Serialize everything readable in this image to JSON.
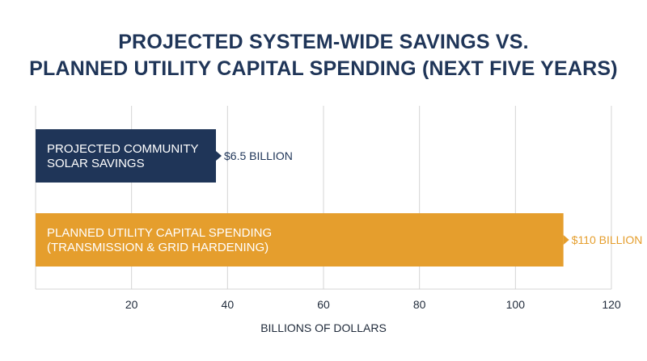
{
  "chart_data": {
    "type": "bar",
    "orientation": "horizontal",
    "title_lines": [
      "PROJECTED SYSTEM-WIDE SAVINGS VS.",
      "PLANNED UTILITY CAPITAL SPENDING (NEXT FIVE YEARS)"
    ],
    "xlabel": "BILLIONS OF DOLLARS",
    "xlim": [
      0,
      120
    ],
    "xticks": [
      20,
      40,
      60,
      80,
      100,
      120
    ],
    "grid": true,
    "bars": [
      {
        "label_lines": [
          "PROJECTED COMMUNITY",
          "SOLAR SAVINGS"
        ],
        "value": 6.5,
        "value_label": "$6.5 BILLION",
        "color": "#1f3558"
      },
      {
        "label_lines": [
          "PLANNED UTILITY CAPITAL SPENDING",
          "(TRANSMISSION & GRID HARDENING)"
        ],
        "value": 110,
        "value_label": "$110 BILLION",
        "color": "#e59e2d"
      }
    ]
  }
}
